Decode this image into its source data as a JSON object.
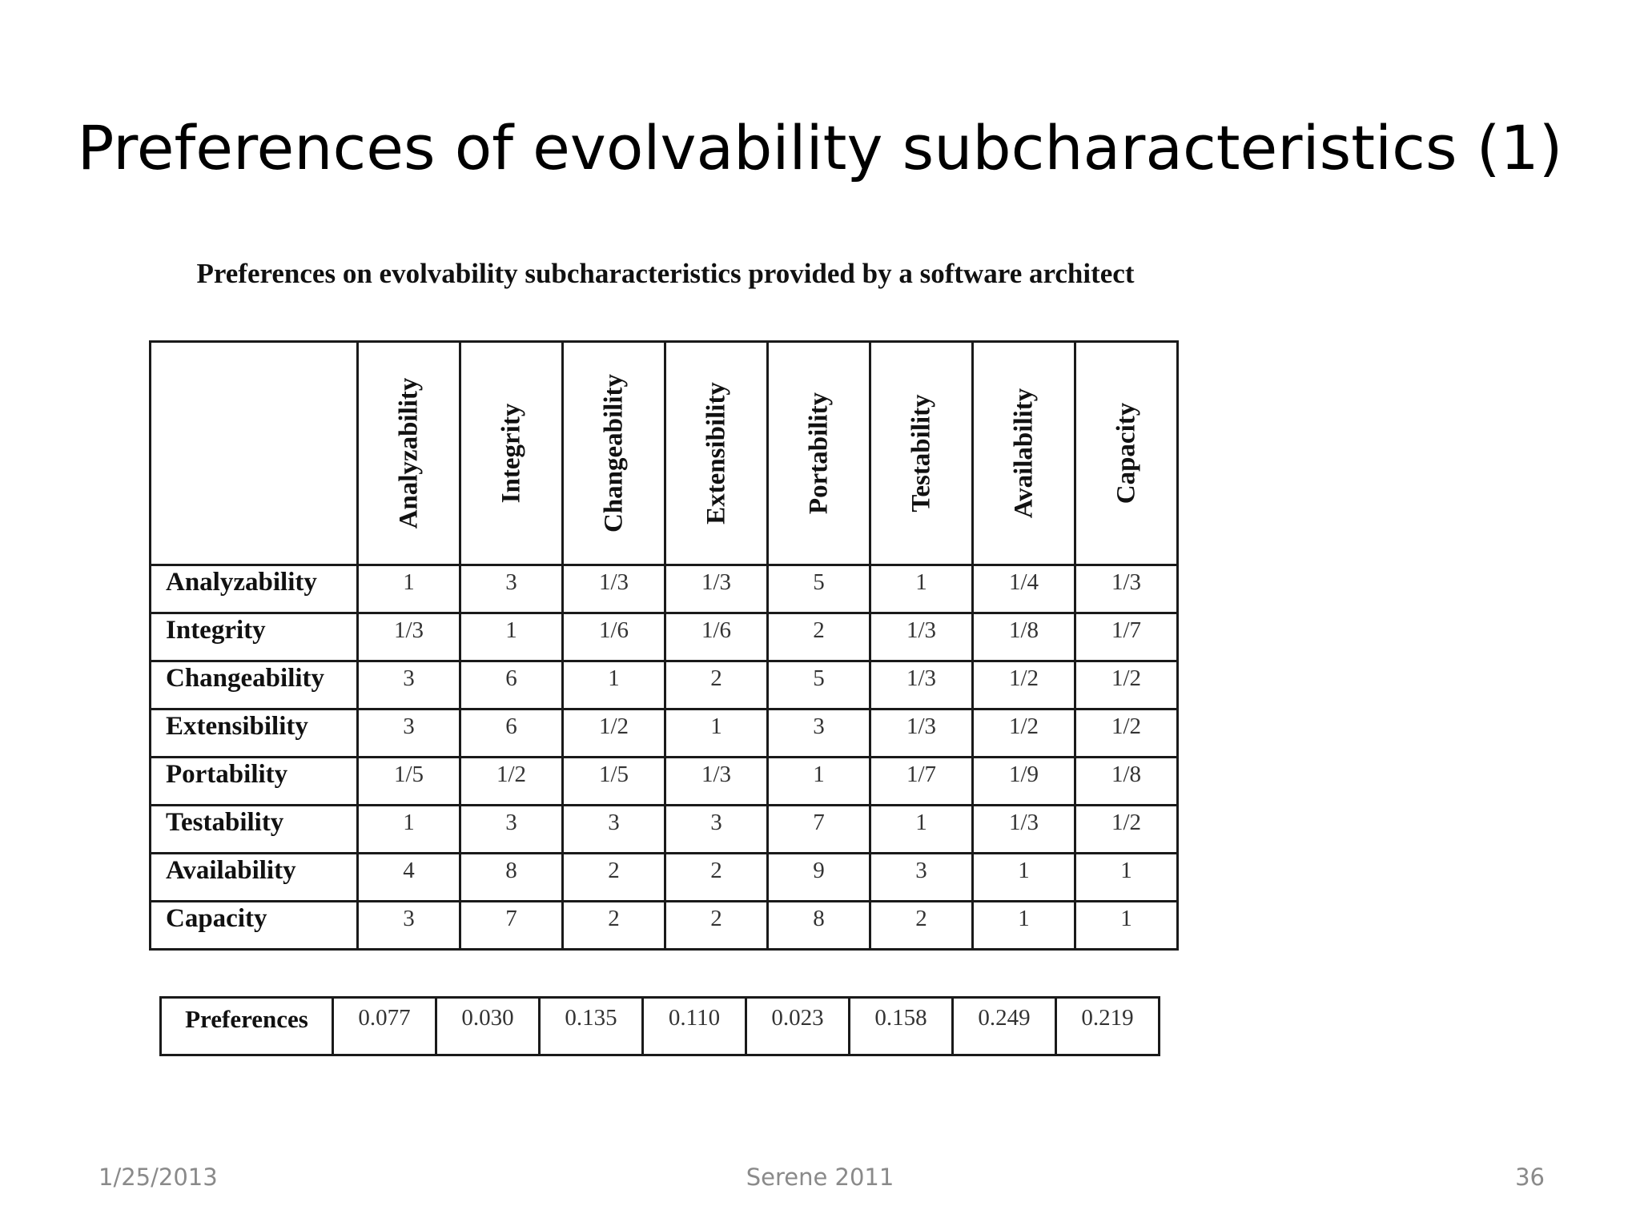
{
  "title": "Preferences of evolvability subcharacteristics (1)",
  "table_caption": "Preferences on evolvability subcharacteristics provided by a software architect",
  "columns": [
    "Analyzability",
    "Integrity",
    "Changeability",
    "Extensibility",
    "Portability",
    "Testability",
    "Availability",
    "Capacity"
  ],
  "rows": [
    {
      "label": "Analyzability",
      "values": [
        "1",
        "3",
        "1/3",
        "1/3",
        "5",
        "1",
        "1/4",
        "1/3"
      ]
    },
    {
      "label": "Integrity",
      "values": [
        "1/3",
        "1",
        "1/6",
        "1/6",
        "2",
        "1/3",
        "1/8",
        "1/7"
      ]
    },
    {
      "label": "Changeability",
      "values": [
        "3",
        "6",
        "1",
        "2",
        "5",
        "1/3",
        "1/2",
        "1/2"
      ]
    },
    {
      "label": "Extensibility",
      "values": [
        "3",
        "6",
        "1/2",
        "1",
        "3",
        "1/3",
        "1/2",
        "1/2"
      ]
    },
    {
      "label": "Portability",
      "values": [
        "1/5",
        "1/2",
        "1/5",
        "1/3",
        "1",
        "1/7",
        "1/9",
        "1/8"
      ]
    },
    {
      "label": "Testability",
      "values": [
        "1",
        "3",
        "3",
        "3",
        "7",
        "1",
        "1/3",
        "1/2"
      ]
    },
    {
      "label": "Availability",
      "values": [
        "4",
        "8",
        "2",
        "2",
        "9",
        "3",
        "1",
        "1"
      ]
    },
    {
      "label": "Capacity",
      "values": [
        "3",
        "7",
        "2",
        "2",
        "8",
        "2",
        "1",
        "1"
      ]
    }
  ],
  "preferences": {
    "label": "Preferences",
    "values": [
      "0.077",
      "0.030",
      "0.135",
      "0.110",
      "0.023",
      "0.158",
      "0.249",
      "0.219"
    ]
  },
  "footer": {
    "date": "1/25/2013",
    "center": "Serene 2011",
    "page": "36"
  }
}
